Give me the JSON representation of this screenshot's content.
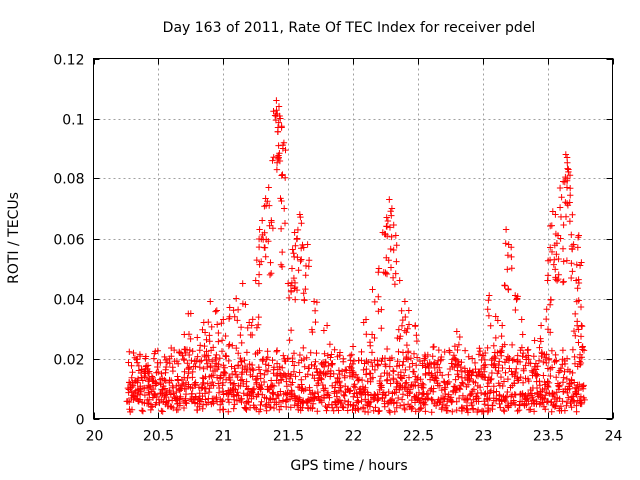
{
  "chart_data": {
    "type": "scatter",
    "title": "Day 163 of 2011, Rate Of TEC Index for receiver pdel",
    "xlabel": "GPS time / hours",
    "ylabel": "ROTI / TECUs",
    "xlim": [
      20,
      24
    ],
    "ylim": [
      0,
      0.12
    ],
    "grid": true,
    "marker": "+",
    "color": "#ff0000",
    "x_ticks": [
      20,
      20.5,
      21,
      21.5,
      22,
      22.5,
      23,
      23.5,
      24
    ],
    "x_tick_labels": [
      "20",
      "20.5",
      "21",
      "21.5",
      "22",
      "22.5",
      "23",
      "23.5",
      "24"
    ],
    "y_ticks": [
      0,
      0.02,
      0.04,
      0.06,
      0.08,
      0.1,
      0.12
    ],
    "y_tick_labels": [
      "0",
      "0.02",
      "0.04",
      "0.06",
      "0.08",
      "0.1",
      "0.12"
    ],
    "series": [
      {
        "name": "ROTI",
        "x_range": [
          20.26,
          23.78
        ],
        "baseline_range": [
          0.004,
          0.022
        ],
        "points": [
          [
            20.3,
            0.012
          ],
          [
            20.35,
            0.016
          ],
          [
            20.4,
            0.02
          ],
          [
            20.45,
            0.014
          ],
          [
            20.55,
            0.01
          ],
          [
            20.65,
            0.013
          ],
          [
            20.7,
            0.028
          ],
          [
            20.75,
            0.035
          ],
          [
            20.8,
            0.027
          ],
          [
            20.85,
            0.032
          ],
          [
            20.9,
            0.039
          ],
          [
            20.95,
            0.036
          ],
          [
            21.0,
            0.033
          ],
          [
            21.05,
            0.037
          ],
          [
            21.1,
            0.04
          ],
          [
            21.15,
            0.045
          ],
          [
            21.2,
            0.032
          ],
          [
            21.25,
            0.046
          ],
          [
            21.28,
            0.063
          ],
          [
            21.3,
            0.066
          ],
          [
            21.33,
            0.071
          ],
          [
            21.35,
            0.077
          ],
          [
            21.37,
            0.066
          ],
          [
            21.4,
            0.101
          ],
          [
            21.41,
            0.106
          ],
          [
            21.43,
            0.104
          ],
          [
            21.44,
            0.1
          ],
          [
            21.45,
            0.097
          ],
          [
            21.46,
            0.09
          ],
          [
            21.47,
            0.07
          ],
          [
            21.5,
            0.045
          ],
          [
            21.53,
            0.05
          ],
          [
            21.55,
            0.062
          ],
          [
            21.57,
            0.06
          ],
          [
            21.59,
            0.068
          ],
          [
            21.62,
            0.057
          ],
          [
            21.65,
            0.058
          ],
          [
            21.7,
            0.039
          ],
          [
            21.8,
            0.031
          ],
          [
            21.9,
            0.022
          ],
          [
            22.0,
            0.024
          ],
          [
            22.1,
            0.033
          ],
          [
            22.15,
            0.043
          ],
          [
            22.2,
            0.05
          ],
          [
            22.23,
            0.062
          ],
          [
            22.26,
            0.067
          ],
          [
            22.28,
            0.073
          ],
          [
            22.3,
            0.07
          ],
          [
            22.33,
            0.061
          ],
          [
            22.36,
            0.046
          ],
          [
            22.4,
            0.039
          ],
          [
            22.43,
            0.036
          ],
          [
            22.48,
            0.031
          ],
          [
            22.55,
            0.02
          ],
          [
            22.65,
            0.018
          ],
          [
            22.8,
            0.029
          ],
          [
            22.9,
            0.016
          ],
          [
            23.0,
            0.021
          ],
          [
            23.05,
            0.041
          ],
          [
            23.1,
            0.034
          ],
          [
            23.15,
            0.031
          ],
          [
            23.18,
            0.063
          ],
          [
            23.2,
            0.058
          ],
          [
            23.25,
            0.041
          ],
          [
            23.3,
            0.033
          ],
          [
            23.35,
            0.021
          ],
          [
            23.4,
            0.026
          ],
          [
            23.45,
            0.031
          ],
          [
            23.5,
            0.046
          ],
          [
            23.52,
            0.057
          ],
          [
            23.54,
            0.069
          ],
          [
            23.56,
            0.068
          ],
          [
            23.58,
            0.061
          ],
          [
            23.6,
            0.06
          ],
          [
            23.62,
            0.079
          ],
          [
            23.64,
            0.088
          ],
          [
            23.65,
            0.087
          ],
          [
            23.66,
            0.083
          ],
          [
            23.67,
            0.072
          ],
          [
            23.7,
            0.058
          ],
          [
            23.72,
            0.046
          ],
          [
            23.74,
            0.061
          ],
          [
            23.75,
            0.051
          ],
          [
            23.76,
            0.031
          ],
          [
            23.77,
            0.024
          ]
        ]
      }
    ]
  }
}
